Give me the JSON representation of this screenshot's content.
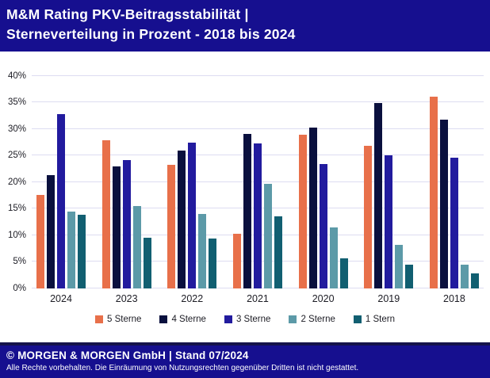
{
  "header": {
    "title_line1": "M&M Rating PKV-Beitragsstabilität |",
    "title_line2": "Sterneverteilung in Prozent - 2018 bis 2024"
  },
  "chart_data": {
    "type": "bar",
    "title": "M&M Rating PKV-Beitragsstabilität | Sterneverteilung in Prozent - 2018 bis 2024",
    "categories": [
      "2024",
      "2023",
      "2022",
      "2021",
      "2020",
      "2019",
      "2018"
    ],
    "series": [
      {
        "name": "5 Sterne",
        "color": "#E8704A",
        "values": [
          17.5,
          27.9,
          23.3,
          10.2,
          28.9,
          26.8,
          36.1
        ]
      },
      {
        "name": "4 Sterne",
        "color": "#0A103E",
        "values": [
          21.3,
          22.9,
          25.9,
          29.0,
          30.3,
          34.9,
          31.7
        ]
      },
      {
        "name": "3 Sterne",
        "color": "#221B9E",
        "values": [
          32.8,
          24.1,
          27.4,
          27.3,
          23.4,
          25.0,
          24.6
        ]
      },
      {
        "name": "2 Sterne",
        "color": "#5C9AA8",
        "values": [
          14.4,
          15.5,
          14.0,
          19.6,
          11.4,
          8.2,
          4.4
        ]
      },
      {
        "name": "1 Stern",
        "color": "#115F71",
        "values": [
          13.9,
          9.5,
          9.4,
          13.6,
          5.7,
          4.5,
          2.8
        ]
      }
    ],
    "ylim": [
      0,
      40
    ],
    "ytick_step": 5,
    "ytick_suffix": "%",
    "grid": "horizontal",
    "legend_position": "bottom",
    "xlabel": "",
    "ylabel": ""
  },
  "footer": {
    "line1": "© MORGEN & MORGEN GmbH | Stand 07/2024",
    "line2": "Alle Rechte vorbehalten. Die Einräumung von Nutzungsrechten gegenüber Dritten ist nicht gestattet."
  }
}
